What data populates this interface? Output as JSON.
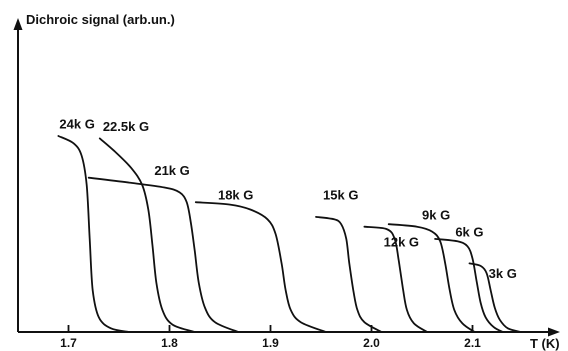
{
  "chart_data": {
    "type": "line",
    "ylabel": "Dichroic signal (arb.un.)",
    "xlabel": "T (K)",
    "xlim": [
      1.65,
      2.18
    ],
    "ylim": [
      0,
      1.0
    ],
    "x_ticks": [
      1.7,
      1.8,
      1.9,
      2.0,
      2.1
    ],
    "x_tick_labels": [
      "1.7",
      "1.8",
      "1.9",
      "2.0",
      "2.1"
    ],
    "grid": false,
    "series": [
      {
        "name": "24kG",
        "points": [
          [
            1.69,
            0.8
          ],
          [
            1.705,
            0.77
          ],
          [
            1.713,
            0.72
          ],
          [
            1.718,
            0.6
          ],
          [
            1.721,
            0.38
          ],
          [
            1.724,
            0.17
          ],
          [
            1.73,
            0.06
          ],
          [
            1.742,
            0.015
          ],
          [
            1.76,
            0.0
          ]
        ]
      },
      {
        "name": "22.5kG",
        "points": [
          [
            1.731,
            0.79
          ],
          [
            1.745,
            0.74
          ],
          [
            1.762,
            0.67
          ],
          [
            1.773,
            0.6
          ],
          [
            1.779,
            0.5
          ],
          [
            1.783,
            0.36
          ],
          [
            1.787,
            0.2
          ],
          [
            1.793,
            0.09
          ],
          [
            1.803,
            0.03
          ],
          [
            1.825,
            0.0
          ]
        ]
      },
      {
        "name": "21kG",
        "points": [
          [
            1.72,
            0.63
          ],
          [
            1.76,
            0.61
          ],
          [
            1.795,
            0.59
          ],
          [
            1.81,
            0.57
          ],
          [
            1.817,
            0.53
          ],
          [
            1.821,
            0.45
          ],
          [
            1.825,
            0.33
          ],
          [
            1.829,
            0.2
          ],
          [
            1.835,
            0.1
          ],
          [
            1.845,
            0.04
          ],
          [
            1.868,
            0.0
          ]
        ]
      },
      {
        "name": "18kG",
        "points": [
          [
            1.826,
            0.53
          ],
          [
            1.86,
            0.52
          ],
          [
            1.88,
            0.5
          ],
          [
            1.897,
            0.46
          ],
          [
            1.905,
            0.4
          ],
          [
            1.911,
            0.28
          ],
          [
            1.915,
            0.17
          ],
          [
            1.92,
            0.09
          ],
          [
            1.93,
            0.04
          ],
          [
            1.955,
            0.0
          ]
        ]
      },
      {
        "name": "15kG",
        "points": [
          [
            1.945,
            0.47
          ],
          [
            1.963,
            0.46
          ],
          [
            1.97,
            0.44
          ],
          [
            1.975,
            0.38
          ],
          [
            1.978,
            0.28
          ],
          [
            1.982,
            0.17
          ],
          [
            1.986,
            0.09
          ],
          [
            1.993,
            0.04
          ],
          [
            2.01,
            0.0
          ]
        ]
      },
      {
        "name": "12kG",
        "points": [
          [
            1.993,
            0.43
          ],
          [
            2.015,
            0.42
          ],
          [
            2.023,
            0.38
          ],
          [
            2.027,
            0.29
          ],
          [
            2.031,
            0.18
          ],
          [
            2.035,
            0.09
          ],
          [
            2.042,
            0.035
          ],
          [
            2.055,
            0.0
          ]
        ]
      },
      {
        "name": "9kG",
        "points": [
          [
            2.017,
            0.44
          ],
          [
            2.045,
            0.43
          ],
          [
            2.06,
            0.41
          ],
          [
            2.068,
            0.37
          ],
          [
            2.073,
            0.28
          ],
          [
            2.077,
            0.18
          ],
          [
            2.082,
            0.09
          ],
          [
            2.09,
            0.035
          ],
          [
            2.102,
            0.0
          ]
        ]
      },
      {
        "name": "6kG",
        "points": [
          [
            2.063,
            0.38
          ],
          [
            2.085,
            0.37
          ],
          [
            2.095,
            0.35
          ],
          [
            2.1,
            0.3
          ],
          [
            2.104,
            0.21
          ],
          [
            2.108,
            0.12
          ],
          [
            2.113,
            0.06
          ],
          [
            2.121,
            0.02
          ],
          [
            2.13,
            0.0
          ]
        ]
      },
      {
        "name": "3kG",
        "points": [
          [
            2.097,
            0.28
          ],
          [
            2.108,
            0.27
          ],
          [
            2.114,
            0.24
          ],
          [
            2.118,
            0.17
          ],
          [
            2.122,
            0.1
          ],
          [
            2.127,
            0.05
          ],
          [
            2.135,
            0.015
          ],
          [
            2.148,
            0.0
          ]
        ]
      }
    ],
    "series_label_anchors": {
      "24kG": [
        1.691,
        0.83
      ],
      "22.5kG": [
        1.734,
        0.82
      ],
      "21kG": [
        1.785,
        0.64
      ],
      "18kG": [
        1.848,
        0.54
      ],
      "15kG": [
        1.952,
        0.54
      ],
      "12kG": [
        2.012,
        0.35
      ],
      "9kG": [
        2.05,
        0.46
      ],
      "6kG": [
        2.083,
        0.39
      ],
      "3kG": [
        2.116,
        0.22
      ]
    }
  }
}
